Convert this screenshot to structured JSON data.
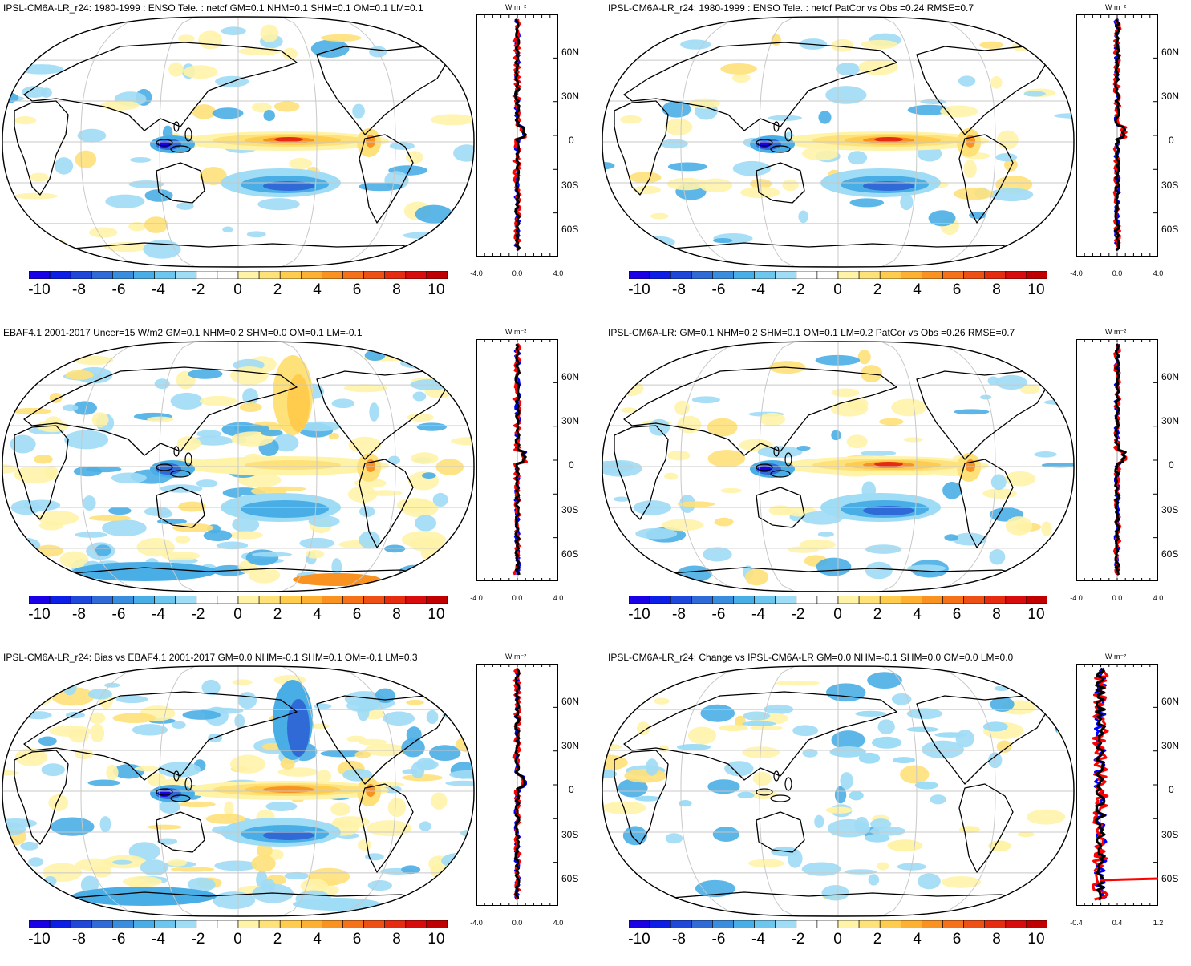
{
  "panels": [
    {
      "id": "p1",
      "title": "IPSL-CM6A-LR_r24: 1980-1999 : ENSO Tele. : netcf GM=0.1 NHM=0.1 SHM=0.1 OM=0.1 LM=0.1",
      "profile_xticks": [
        "-4.0",
        "0.0",
        "4.0"
      ]
    },
    {
      "id": "p2",
      "title": "IPSL-CM6A-LR_r24: 1980-1999 : ENSO Tele. : netcf PatCor vs Obs =0.24 RMSE=0.7",
      "profile_xticks": [
        "-4.0",
        "0.0",
        "4.0"
      ]
    },
    {
      "id": "p3",
      "title": "EBAF4.1 2001-2017 Uncer=15 W/m2 GM=0.1 NHM=0.2 SHM=0.0 OM=0.1 LM=-0.1",
      "profile_xticks": [
        "-4.0",
        "0.0",
        "4.0"
      ]
    },
    {
      "id": "p4",
      "title": "IPSL-CM6A-LR: GM=0.1 NHM=0.2 SHM=0.1 OM=0.1 LM=0.2 PatCor vs Obs =0.26 RMSE=0.7",
      "profile_xticks": [
        "-4.0",
        "0.0",
        "4.0"
      ]
    },
    {
      "id": "p5",
      "title": "IPSL-CM6A-LR_r24: Bias vs EBAF4.1 2001-2017 GM=0.0 NHM=-0.1 SHM=0.1 OM=-0.1 LM=0.3",
      "profile_xticks": [
        "-4.0",
        "0.0",
        "4.0"
      ]
    },
    {
      "id": "p6",
      "title": "IPSL-CM6A-LR_r24: Change vs IPSL-CM6A-LR GM=0.0 NHM=-0.1 SHM=0.0 OM=0.0 LM=0.0",
      "profile_xticks": [
        "-0.4",
        "0.4",
        "1.2"
      ]
    }
  ],
  "profile": {
    "unit": "W m⁻²",
    "lat_labels": [
      "60N",
      "30N",
      "0",
      "30S",
      "60S"
    ]
  },
  "colorbar": {
    "labels": [
      "-10",
      "-8",
      "-6",
      "-4",
      "-2",
      "0",
      "2",
      "4",
      "6",
      "8",
      "10"
    ],
    "colors": [
      "#1a00e6",
      "#0d1ee6",
      "#1f47d9",
      "#2f6ad6",
      "#3a8ddc",
      "#4aaee6",
      "#6cc6ee",
      "#9fdcf5",
      "#ffffff",
      "#ffffff",
      "#fff3a8",
      "#ffe17a",
      "#ffcc4d",
      "#fdb032",
      "#fa9222",
      "#f5711a",
      "#ee4f14",
      "#e52b10",
      "#d80c0c",
      "#c00000"
    ]
  },
  "colors": {
    "positive_line": "#ff0000",
    "negative_line": "#0000ff",
    "total_line": "#000000",
    "grid": "#c8c8c8"
  }
}
